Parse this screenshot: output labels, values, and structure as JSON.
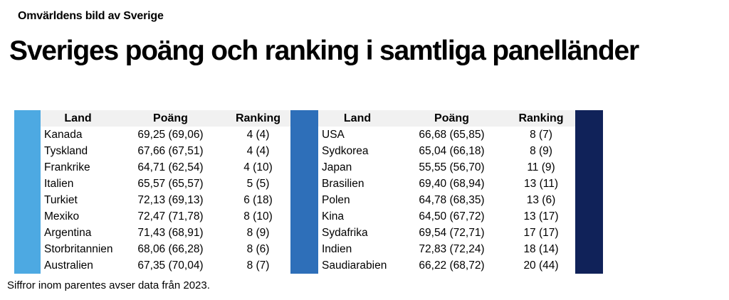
{
  "page": {
    "eyebrow": "Omvärldens bild av Sverige",
    "title": "Sveriges poäng och ranking i samtliga panelländer",
    "footnote": "Siffror inom parentes avser data från 2023."
  },
  "colors": {
    "left_accent_bar": "#4DA9E2",
    "middle_accent_bar": "#2E6FB9",
    "right_accent_bar": "#102259",
    "table_header_bg": "#F1F1F1",
    "text": "#000000"
  },
  "tables": [
    {
      "columns": [
        "Land",
        "Poäng",
        "Ranking"
      ],
      "rows": [
        [
          "Kanada",
          "69,25 (69,06)",
          "4 (4)"
        ],
        [
          "Tyskland",
          "67,66 (67,51)",
          "4 (4)"
        ],
        [
          "Frankrike",
          "64,71 (62,54)",
          "4 (10)"
        ],
        [
          "Italien",
          "65,57 (65,57)",
          "5 (5)"
        ],
        [
          "Turkiet",
          "72,13 (69,13)",
          "6 (18)"
        ],
        [
          "Mexiko",
          "72,47 (71,78)",
          "8 (10)"
        ],
        [
          "Argentina",
          "71,43 (68,91)",
          "8 (9)"
        ],
        [
          "Storbritannien",
          "68,06 (66,28)",
          "8 (6)"
        ],
        [
          "Australien",
          "67,35 (70,04)",
          "8 (7)"
        ]
      ]
    },
    {
      "columns": [
        "Land",
        "Poäng",
        "Ranking"
      ],
      "rows": [
        [
          "USA",
          "66,68 (65,85)",
          "8 (7)"
        ],
        [
          "Sydkorea",
          "65,04 (66,18)",
          "8 (9)"
        ],
        [
          "Japan",
          "55,55 (56,70)",
          "11 (9)"
        ],
        [
          "Brasilien",
          "69,40 (68,94)",
          "13 (11)"
        ],
        [
          "Polen",
          "64,78 (68,35)",
          "13 (6)"
        ],
        [
          "Kina",
          "64,50 (67,72)",
          "13 (17)"
        ],
        [
          "Sydafrika",
          "69,54 (72,71)",
          "17 (17)"
        ],
        [
          "Indien",
          "72,83 (72,24)",
          "18 (14)"
        ],
        [
          "Saudiarabien",
          "66,22 (68,72)",
          "20 (44)"
        ]
      ]
    }
  ]
}
